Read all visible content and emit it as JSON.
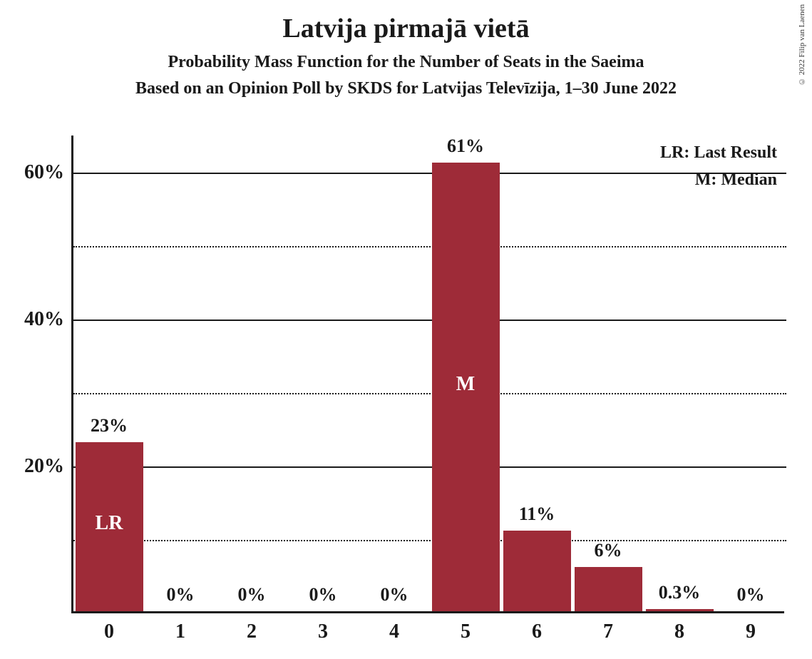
{
  "title": "Latvija pirmajā vietā",
  "subtitle1": "Probability Mass Function for the Number of Seats in the Saeima",
  "subtitle2": "Based on an Opinion Poll by SKDS for Latvijas Televīzija, 1–30 June 2022",
  "copyright": "© 2022 Filip van Laenen",
  "legend": {
    "lr": "LR: Last Result",
    "m": "M: Median"
  },
  "chart": {
    "type": "bar",
    "bar_color": "#9e2b38",
    "background_color": "#ffffff",
    "axis_color": "#1a1a1a",
    "grid_solid_color": "#1a1a1a",
    "grid_dotted_color": "#1a1a1a",
    "ylim_max": 65,
    "y_major_ticks": [
      20,
      40,
      60
    ],
    "y_minor_ticks": [
      10,
      30,
      50
    ],
    "categories": [
      "0",
      "1",
      "2",
      "3",
      "4",
      "5",
      "6",
      "7",
      "8",
      "9"
    ],
    "values": [
      23,
      0,
      0,
      0,
      0,
      61,
      11,
      6,
      0.3,
      0
    ],
    "value_labels": [
      "23%",
      "0%",
      "0%",
      "0%",
      "0%",
      "61%",
      "11%",
      "6%",
      "0.3%",
      "0%"
    ],
    "inner_labels": {
      "0": "LR",
      "5": "M"
    },
    "bar_width_ratio": 0.95,
    "title_fontsize": 38,
    "subtitle_fontsize": 24,
    "tick_fontsize": 28,
    "value_label_fontsize": 26
  }
}
